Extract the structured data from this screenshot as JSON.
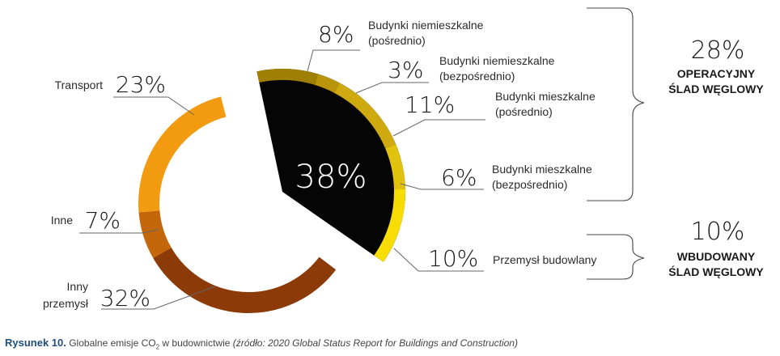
{
  "chart_data": {
    "type": "pie",
    "center_label": "38%",
    "segments": [
      {
        "pct_label": "8%",
        "label": [
          "Budynki niemieszkalne",
          "(pośrednio)"
        ],
        "value": 8,
        "color": "#a07f05",
        "group": "highlight"
      },
      {
        "pct_label": "3%",
        "label": [
          "Budynki niemieszkalne",
          "(bezpośrednio)"
        ],
        "value": 3,
        "color": "#b8950a",
        "group": "highlight"
      },
      {
        "pct_label": "11%",
        "label": [
          "Budynki mieszkalne",
          "(pośrednio)"
        ],
        "value": 11,
        "color": "#ceaa10",
        "group": "highlight"
      },
      {
        "pct_label": "6%",
        "label": [
          "Budynki mieszkalne",
          "(bezpośrednio)"
        ],
        "value": 6,
        "color": "#e1c20e",
        "group": "highlight"
      },
      {
        "pct_label": "10%",
        "label": [
          "Przemysł budowlany"
        ],
        "value": 10,
        "color": "#f7dd04",
        "group": "highlight"
      },
      {
        "pct_label": "32%",
        "label": [
          "Inny",
          "przemysł"
        ],
        "value": 32,
        "color": "#8b3a08",
        "group": "ring"
      },
      {
        "pct_label": "7%",
        "label": [
          "Inne"
        ],
        "value": 7,
        "color": "#c4670a",
        "group": "ring"
      },
      {
        "pct_label": "23%",
        "label": [
          "Transport"
        ],
        "value": 23,
        "color": "#f29a10",
        "group": "ring"
      }
    ],
    "aggregates": [
      {
        "pct": "28%",
        "label": [
          "OPERACYJNY",
          "ŚLAD WĘGLOWY"
        ]
      },
      {
        "pct": "10%",
        "label": [
          "WBUDOWANY",
          "ŚLAD WĘGLOWY"
        ]
      }
    ]
  },
  "caption": {
    "figure": "Rysunek 10.",
    "text_before": "Globalne emisje CO",
    "subscript": "2",
    "text_after": " w budownictwie ",
    "source": "(źródło: 2020 Global Status Report for Buildings and Construction)"
  }
}
